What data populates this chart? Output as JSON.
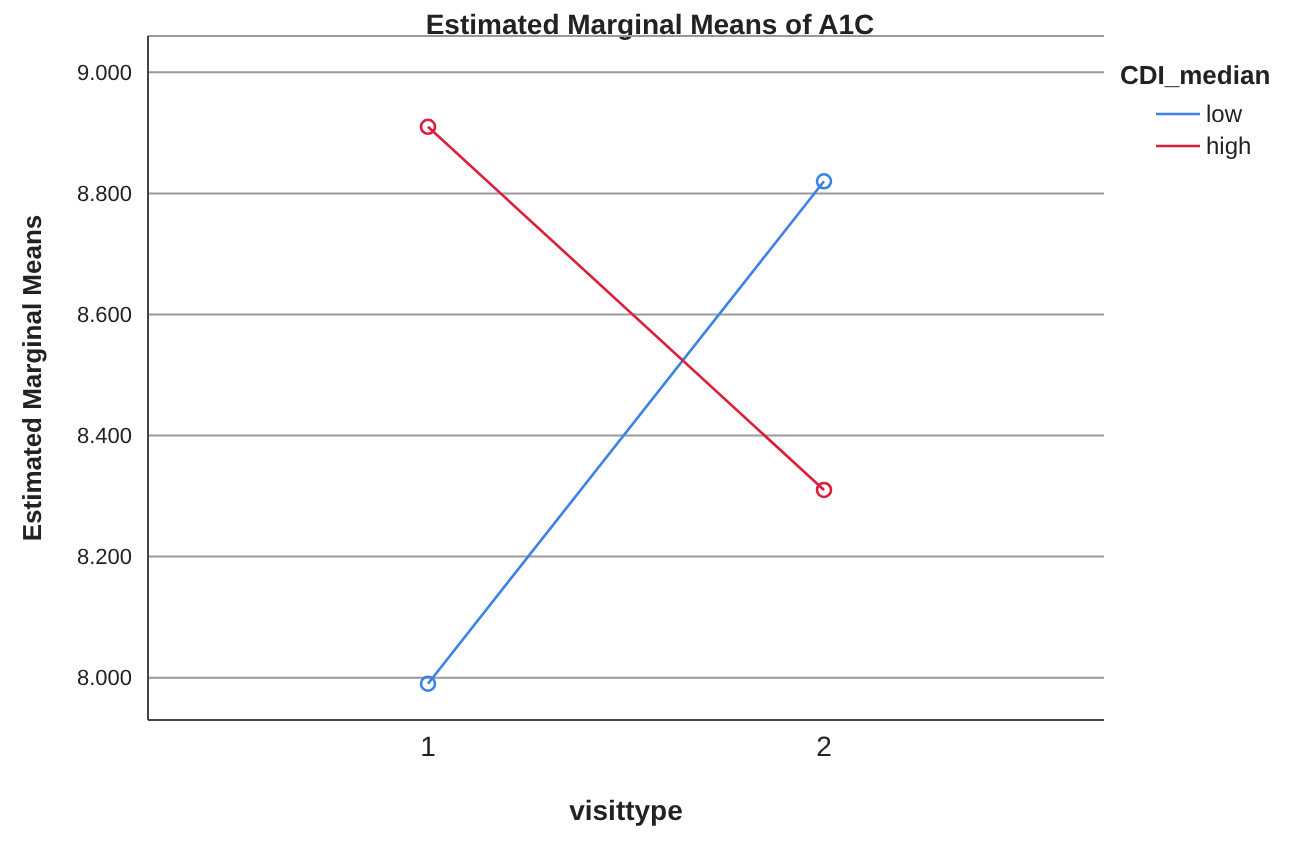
{
  "chart_data": {
    "type": "line",
    "title": "Estimated Marginal Means of A1C",
    "xlabel": "visittype",
    "ylabel": "Estimated Marginal Means",
    "legend_title": "CDI_median",
    "categories": [
      "1",
      "2"
    ],
    "series": [
      {
        "name": "low",
        "color": "#3c82e6",
        "values": [
          7.99,
          8.82
        ]
      },
      {
        "name": "high",
        "color": "#dc1e3c",
        "values": [
          8.91,
          8.31
        ]
      }
    ],
    "ylim": [
      7.93,
      9.06
    ],
    "yticks": [
      {
        "value": 8,
        "label": "8.000"
      },
      {
        "value": 8.2,
        "label": "8.200"
      },
      {
        "value": 8.4,
        "label": "8.400"
      },
      {
        "value": 8.6,
        "label": "8.600"
      },
      {
        "value": 8.8,
        "label": "8.800"
      },
      {
        "value": 9,
        "label": "9.000"
      }
    ],
    "grid": "y",
    "legend": "top right",
    "marker": "circle",
    "line_style": "solid"
  }
}
